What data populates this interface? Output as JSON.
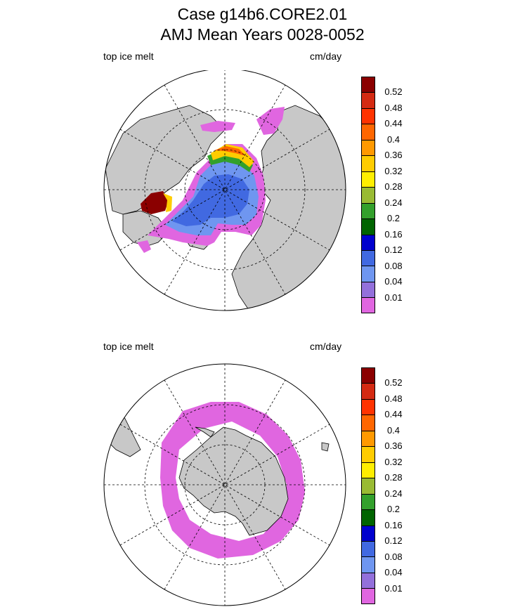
{
  "title": {
    "line1": "Case g14b6.CORE2.01",
    "line2": "AMJ Mean    Years 0028-0052"
  },
  "panels": [
    {
      "id": "north",
      "label": "top ice melt",
      "units": "cm/day"
    },
    {
      "id": "south",
      "label": "top ice melt",
      "units": "cm/day"
    }
  ],
  "colorbar": {
    "labels": [
      "0.52",
      "0.48",
      "0.44",
      "0.4",
      "0.36",
      "0.32",
      "0.28",
      "0.24",
      "0.2",
      "0.16",
      "0.12",
      "0.08",
      "0.04",
      "0.01"
    ],
    "colors": [
      "#8b0000",
      "#d42a12",
      "#ff3300",
      "#ff6600",
      "#ff9900",
      "#ffcc00",
      "#ffee00",
      "#99bb33",
      "#33a02c",
      "#006400",
      "#0000cd",
      "#4169e1",
      "#6f96f0",
      "#9370db",
      "#e066e0"
    ]
  },
  "map_colors": {
    "land": "#c8c8c8",
    "ocean": "#ffffff"
  }
}
